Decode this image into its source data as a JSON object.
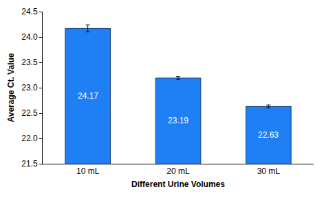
{
  "chart_data": {
    "type": "bar",
    "x_label": "Different Urine Volumes",
    "y_label": "Average Ct. Value",
    "categories": [
      "10 mL",
      "20 mL",
      "30 mL"
    ],
    "values": [
      24.17,
      23.19,
      22.63
    ],
    "errors": [
      0.07,
      0.03,
      0.03
    ],
    "color": "#1f7ff5",
    "ylim": [
      21.5,
      24.5
    ],
    "yticks": [
      21.5,
      {
        "value": 22,
        "label": "22.0"
      },
      22.5,
      {
        "value": 23,
        "label": "23.0"
      },
      23.5,
      {
        "value": 24,
        "label": "24.0"
      },
      24.5
    ],
    "grid": false,
    "data_labels": true
  }
}
